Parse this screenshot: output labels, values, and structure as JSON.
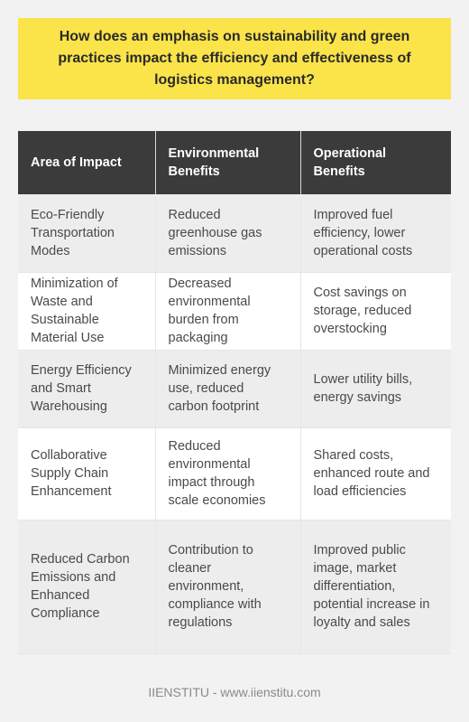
{
  "title": "How does an emphasis on sustainability and green practices impact the efficiency and effectiveness of logistics management?",
  "table": {
    "headers": [
      "Area of Impact",
      "Environmental Benefits",
      "Operational Benefits"
    ],
    "rows": [
      [
        "Eco-Friendly Transportation Modes",
        "Reduced greenhouse gas emissions",
        "Improved fuel efficiency, lower operational costs"
      ],
      [
        "Minimization of Waste and Sustainable Material Use",
        "Decreased environmental burden from packaging",
        "Cost savings on storage, reduced overstocking"
      ],
      [
        "Energy Efficiency and Smart Warehousing",
        "Minimized energy use, reduced carbon footprint",
        "Lower utility bills, energy savings"
      ],
      [
        "Collaborative Supply Chain Enhancement",
        "Reduced environmental impact through scale economies",
        "Shared costs, enhanced route and load efficiencies"
      ],
      [
        "Reduced Carbon Emissions and Enhanced Compliance",
        "Contribution to cleaner environment, compliance with regulations",
        "Improved public image, market differentiation, potential increase in loyalty and sales"
      ]
    ]
  },
  "footer": "IIENSTITU - www.iienstitu.com",
  "colors": {
    "banner": "#fbe44a",
    "header_bg": "#3b3b3b",
    "row_alt": "#ededed",
    "page_bg": "#f2f2f2"
  }
}
